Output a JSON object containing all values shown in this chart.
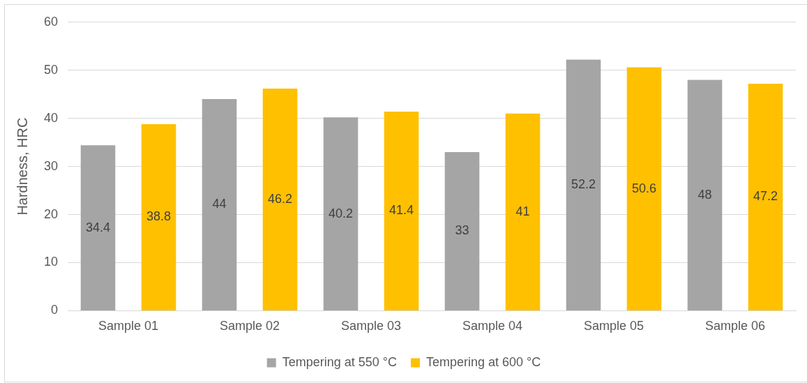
{
  "chart_data": {
    "type": "bar",
    "ylabel": "Hardness, HRC",
    "categories": [
      "Sample 01",
      "Sample 02",
      "Sample 03",
      "Sample 04",
      "Sample 05",
      "Sample 06"
    ],
    "series": [
      {
        "name": "Tempering at 550 °C",
        "color": "#a5a5a5",
        "values": [
          34.4,
          44,
          40.2,
          33,
          52.2,
          48
        ]
      },
      {
        "name": "Tempering at 600 °C",
        "color": "#ffc000",
        "values": [
          38.8,
          46.2,
          41.4,
          41,
          50.6,
          47.2
        ]
      }
    ],
    "ylim": [
      0,
      60
    ],
    "yticks": [
      0,
      10,
      20,
      30,
      40,
      50,
      60
    ],
    "grid": "y",
    "legend": "bottom",
    "data_labels": true
  }
}
